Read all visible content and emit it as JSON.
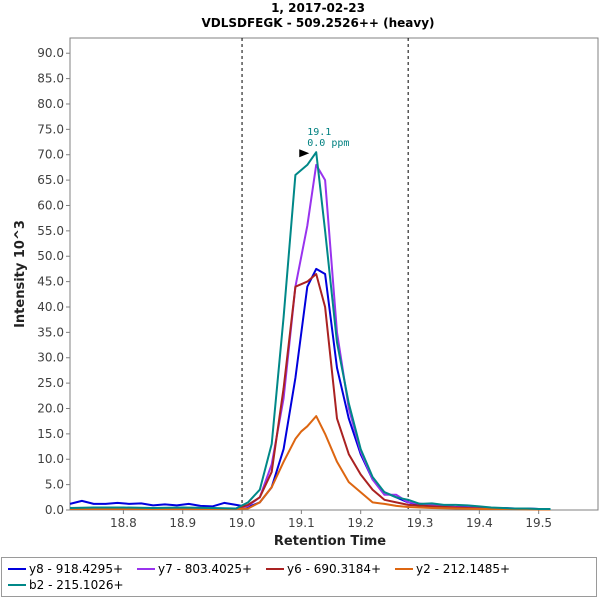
{
  "chart_data": {
    "type": "line",
    "title": "1, 2017-02-23",
    "subtitle": "VDLSDFEGK - 509.2526++ (heavy)",
    "xlabel": "Retention Time",
    "ylabel": "Intensity 10^3",
    "xlim": [
      18.71,
      19.6
    ],
    "ylim": [
      0,
      93
    ],
    "xticks": [
      "18.8",
      "18.9",
      "19.0",
      "19.1",
      "19.2",
      "19.3",
      "19.4",
      "19.5"
    ],
    "yticks": [
      "0.0",
      "5.0",
      "10.0",
      "15.0",
      "20.0",
      "25.0",
      "30.0",
      "35.0",
      "40.0",
      "45.0",
      "50.0",
      "55.0",
      "60.0",
      "65.0",
      "70.0",
      "75.0",
      "80.0",
      "85.0",
      "90.0"
    ],
    "grid": false,
    "legend_position": "bottom",
    "integration_bounds": [
      19.0,
      19.28
    ],
    "annotation": {
      "x": 19.12,
      "y": 70.5,
      "label_rt": "19.1",
      "label_ppm": "0.0 ppm"
    },
    "series": [
      {
        "name": "y8 - 918.4295+",
        "color": "#0000dd",
        "x": [
          18.71,
          18.73,
          18.75,
          18.77,
          18.79,
          18.81,
          18.83,
          18.85,
          18.87,
          18.89,
          18.91,
          18.93,
          18.95,
          18.97,
          18.99,
          19.01,
          19.03,
          19.05,
          19.07,
          19.09,
          19.11,
          19.125,
          19.14,
          19.16,
          19.18,
          19.2,
          19.22,
          19.24,
          19.26,
          19.28,
          19.3,
          19.32,
          19.34,
          19.36,
          19.38,
          19.4,
          19.42,
          19.44,
          19.46,
          19.48,
          19.5,
          19.52
        ],
        "values": [
          1.2,
          1.8,
          1.2,
          1.2,
          1.4,
          1.2,
          1.3,
          0.9,
          1.1,
          0.9,
          1.2,
          0.8,
          0.7,
          1.4,
          1.0,
          0.6,
          1.5,
          4.5,
          12.0,
          26.0,
          44.0,
          47.5,
          46.5,
          28.0,
          18.0,
          11.0,
          6.0,
          3.5,
          2.5,
          1.5,
          1.0,
          0.9,
          0.8,
          0.6,
          0.6,
          0.5,
          0.4,
          0.4,
          0.3,
          0.3,
          0.2,
          0.2
        ]
      },
      {
        "name": "y7 - 803.4025+",
        "color": "#9933ee",
        "x": [
          18.71,
          18.75,
          18.8,
          18.85,
          18.9,
          18.95,
          18.99,
          19.01,
          19.03,
          19.05,
          19.07,
          19.09,
          19.11,
          19.125,
          19.14,
          19.16,
          19.18,
          19.2,
          19.22,
          19.24,
          19.26,
          19.28,
          19.32,
          19.36,
          19.4,
          19.45,
          19.5,
          19.52
        ],
        "values": [
          0.2,
          0.3,
          0.3,
          0.2,
          0.3,
          0.2,
          0.2,
          0.8,
          2.5,
          9.0,
          22.0,
          44.0,
          56.0,
          68.0,
          65.0,
          35.0,
          20.0,
          11.5,
          6.0,
          3.0,
          3.0,
          1.5,
          1.0,
          0.6,
          0.4,
          0.3,
          0.2,
          0.2
        ]
      },
      {
        "name": "y6 - 690.3184+",
        "color": "#aa2222",
        "x": [
          18.71,
          18.75,
          18.8,
          18.85,
          18.9,
          18.95,
          18.99,
          19.01,
          19.03,
          19.05,
          19.07,
          19.09,
          19.11,
          19.125,
          19.14,
          19.16,
          19.18,
          19.2,
          19.22,
          19.24,
          19.26,
          19.28,
          19.32,
          19.36,
          19.4,
          19.45,
          19.5,
          19.52
        ],
        "values": [
          0.3,
          0.4,
          0.4,
          0.3,
          0.4,
          0.3,
          0.3,
          1.0,
          2.5,
          7.5,
          24.0,
          44.0,
          45.0,
          46.5,
          40.0,
          18.0,
          11.0,
          7.0,
          4.0,
          2.0,
          1.5,
          1.0,
          0.7,
          0.5,
          0.3,
          0.2,
          0.2,
          0.2
        ]
      },
      {
        "name": "y2 - 212.1485+",
        "color": "#dd6611",
        "x": [
          18.71,
          18.75,
          18.8,
          18.85,
          18.9,
          18.95,
          18.99,
          19.01,
          19.03,
          19.05,
          19.07,
          19.09,
          19.1,
          19.11,
          19.125,
          19.14,
          19.16,
          19.18,
          19.2,
          19.22,
          19.24,
          19.26,
          19.28,
          19.32,
          19.36,
          19.4,
          19.45,
          19.5,
          19.52
        ],
        "values": [
          0.2,
          0.2,
          0.2,
          0.2,
          0.2,
          0.2,
          0.2,
          0.3,
          1.5,
          4.5,
          9.5,
          14.0,
          15.5,
          16.5,
          18.5,
          15.0,
          9.5,
          5.5,
          3.5,
          1.5,
          1.2,
          0.8,
          0.6,
          0.4,
          0.3,
          0.2,
          0.2,
          0.1,
          0.1
        ]
      },
      {
        "name": "b2 - 215.1026+",
        "color": "#008888",
        "x": [
          18.71,
          18.75,
          18.8,
          18.85,
          18.9,
          18.95,
          18.99,
          19.01,
          19.03,
          19.05,
          19.07,
          19.09,
          19.11,
          19.125,
          19.14,
          19.16,
          19.18,
          19.2,
          19.22,
          19.24,
          19.26,
          19.28,
          19.3,
          19.32,
          19.34,
          19.36,
          19.38,
          19.4,
          19.42,
          19.44,
          19.46,
          19.48,
          19.5,
          19.52
        ],
        "values": [
          0.4,
          0.5,
          0.5,
          0.4,
          0.5,
          0.4,
          0.3,
          1.5,
          4.0,
          13.0,
          38.0,
          66.0,
          68.0,
          70.5,
          55.0,
          33.0,
          21.0,
          12.0,
          6.5,
          3.5,
          2.5,
          2.0,
          1.2,
          1.3,
          1.0,
          1.0,
          0.9,
          0.7,
          0.5,
          0.4,
          0.3,
          0.3,
          0.2,
          0.2
        ]
      }
    ]
  }
}
